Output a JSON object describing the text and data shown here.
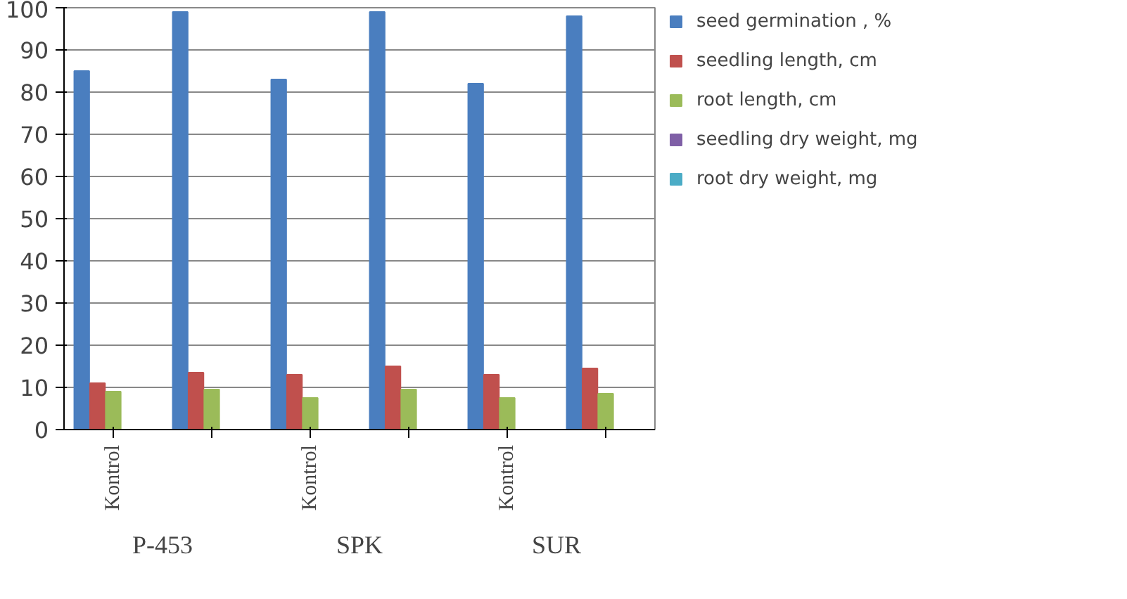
{
  "chart_data": {
    "type": "bar",
    "categories": [
      "Kontrol",
      null,
      "Kontrol",
      null,
      "Kontrol",
      null
    ],
    "annotations": [
      "P-453",
      "SPK",
      "SUR"
    ],
    "series": [
      {
        "name": "seed germination , %",
        "color": "#4a7ebf",
        "values": [
          85,
          99,
          83,
          99,
          82,
          98
        ]
      },
      {
        "name": "seedling length, cm",
        "color": "#c0504d",
        "values": [
          11,
          13.5,
          13,
          15,
          13,
          14.5
        ]
      },
      {
        "name": "root length, cm",
        "color": "#9bbb59",
        "values": [
          9,
          9.5,
          7.5,
          9.5,
          7.5,
          8.5
        ]
      },
      {
        "name": "seedling dry weight, mg",
        "color": "#7f5fa6",
        "values": [
          0,
          0,
          0,
          0,
          0,
          0
        ]
      },
      {
        "name": "root dry weight, mg",
        "color": "#4bacc6",
        "values": [
          0,
          0,
          0,
          0,
          0,
          0
        ]
      }
    ],
    "ylim": [
      0,
      100
    ],
    "yticks": [
      0,
      10,
      20,
      30,
      40,
      50,
      60,
      70,
      80,
      90,
      100
    ],
    "grid": "y",
    "legend": "right"
  }
}
